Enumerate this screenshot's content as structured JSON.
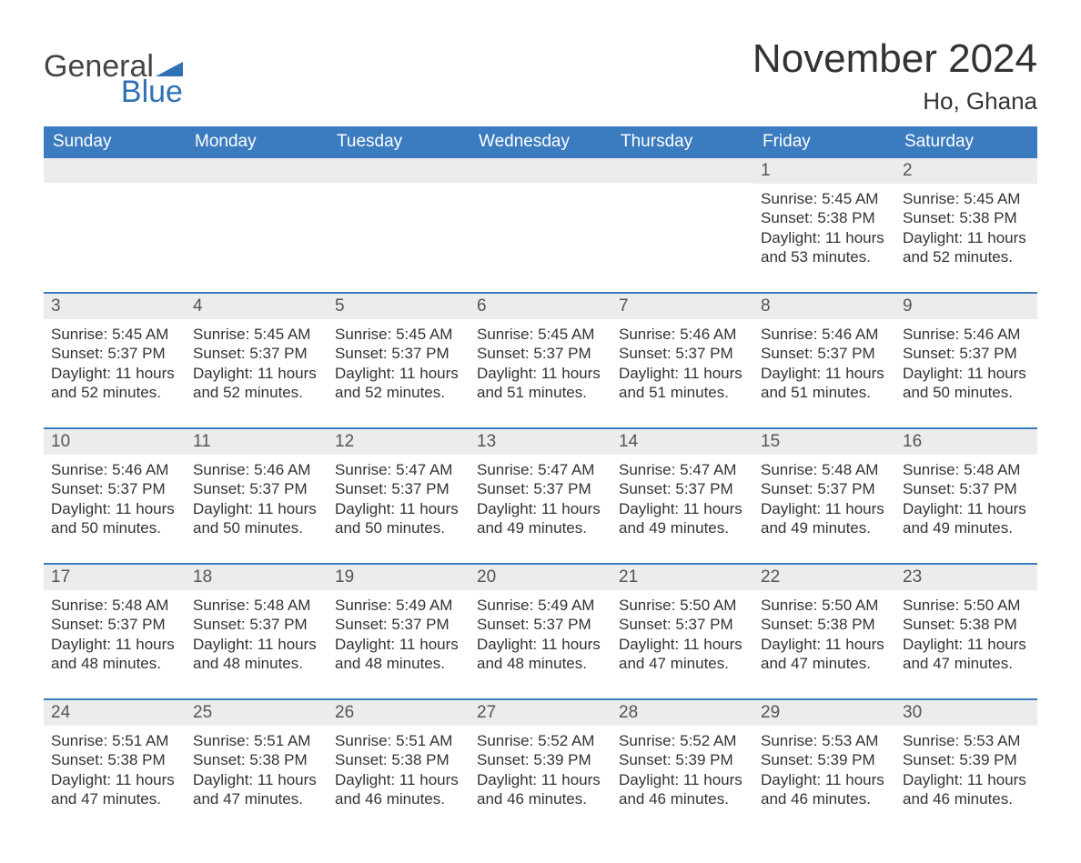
{
  "colors": {
    "header_bg": "#3b7bbf",
    "header_text": "#ffffff",
    "daynum_bg": "#ececec",
    "daynum_text": "#555555",
    "body_text": "#333333",
    "accent": "#2f71b6",
    "row_border": "#3b7bbf",
    "page_bg": "#ffffff"
  },
  "typography": {
    "title_fontsize": 44,
    "location_fontsize": 26,
    "weekday_fontsize": 19,
    "daynum_fontsize": 19,
    "body_fontsize": 17,
    "font_family": "Arial"
  },
  "logo": {
    "line1": "General",
    "line2": "Blue"
  },
  "title": "November 2024",
  "location": "Ho, Ghana",
  "weekdays": [
    "Sunday",
    "Monday",
    "Tuesday",
    "Wednesday",
    "Thursday",
    "Friday",
    "Saturday"
  ],
  "labels": {
    "sunrise": "Sunrise: ",
    "sunset": "Sunset: ",
    "daylight": "Daylight: "
  },
  "weeks": [
    [
      {
        "empty": true
      },
      {
        "empty": true
      },
      {
        "empty": true
      },
      {
        "empty": true
      },
      {
        "empty": true
      },
      {
        "n": "1",
        "sunrise": "5:45 AM",
        "sunset": "5:38 PM",
        "daylight": "11 hours and 53 minutes."
      },
      {
        "n": "2",
        "sunrise": "5:45 AM",
        "sunset": "5:38 PM",
        "daylight": "11 hours and 52 minutes."
      }
    ],
    [
      {
        "n": "3",
        "sunrise": "5:45 AM",
        "sunset": "5:37 PM",
        "daylight": "11 hours and 52 minutes."
      },
      {
        "n": "4",
        "sunrise": "5:45 AM",
        "sunset": "5:37 PM",
        "daylight": "11 hours and 52 minutes."
      },
      {
        "n": "5",
        "sunrise": "5:45 AM",
        "sunset": "5:37 PM",
        "daylight": "11 hours and 52 minutes."
      },
      {
        "n": "6",
        "sunrise": "5:45 AM",
        "sunset": "5:37 PM",
        "daylight": "11 hours and 51 minutes."
      },
      {
        "n": "7",
        "sunrise": "5:46 AM",
        "sunset": "5:37 PM",
        "daylight": "11 hours and 51 minutes."
      },
      {
        "n": "8",
        "sunrise": "5:46 AM",
        "sunset": "5:37 PM",
        "daylight": "11 hours and 51 minutes."
      },
      {
        "n": "9",
        "sunrise": "5:46 AM",
        "sunset": "5:37 PM",
        "daylight": "11 hours and 50 minutes."
      }
    ],
    [
      {
        "n": "10",
        "sunrise": "5:46 AM",
        "sunset": "5:37 PM",
        "daylight": "11 hours and 50 minutes."
      },
      {
        "n": "11",
        "sunrise": "5:46 AM",
        "sunset": "5:37 PM",
        "daylight": "11 hours and 50 minutes."
      },
      {
        "n": "12",
        "sunrise": "5:47 AM",
        "sunset": "5:37 PM",
        "daylight": "11 hours and 50 minutes."
      },
      {
        "n": "13",
        "sunrise": "5:47 AM",
        "sunset": "5:37 PM",
        "daylight": "11 hours and 49 minutes."
      },
      {
        "n": "14",
        "sunrise": "5:47 AM",
        "sunset": "5:37 PM",
        "daylight": "11 hours and 49 minutes."
      },
      {
        "n": "15",
        "sunrise": "5:48 AM",
        "sunset": "5:37 PM",
        "daylight": "11 hours and 49 minutes."
      },
      {
        "n": "16",
        "sunrise": "5:48 AM",
        "sunset": "5:37 PM",
        "daylight": "11 hours and 49 minutes."
      }
    ],
    [
      {
        "n": "17",
        "sunrise": "5:48 AM",
        "sunset": "5:37 PM",
        "daylight": "11 hours and 48 minutes."
      },
      {
        "n": "18",
        "sunrise": "5:48 AM",
        "sunset": "5:37 PM",
        "daylight": "11 hours and 48 minutes."
      },
      {
        "n": "19",
        "sunrise": "5:49 AM",
        "sunset": "5:37 PM",
        "daylight": "11 hours and 48 minutes."
      },
      {
        "n": "20",
        "sunrise": "5:49 AM",
        "sunset": "5:37 PM",
        "daylight": "11 hours and 48 minutes."
      },
      {
        "n": "21",
        "sunrise": "5:50 AM",
        "sunset": "5:37 PM",
        "daylight": "11 hours and 47 minutes."
      },
      {
        "n": "22",
        "sunrise": "5:50 AM",
        "sunset": "5:38 PM",
        "daylight": "11 hours and 47 minutes."
      },
      {
        "n": "23",
        "sunrise": "5:50 AM",
        "sunset": "5:38 PM",
        "daylight": "11 hours and 47 minutes."
      }
    ],
    [
      {
        "n": "24",
        "sunrise": "5:51 AM",
        "sunset": "5:38 PM",
        "daylight": "11 hours and 47 minutes."
      },
      {
        "n": "25",
        "sunrise": "5:51 AM",
        "sunset": "5:38 PM",
        "daylight": "11 hours and 47 minutes."
      },
      {
        "n": "26",
        "sunrise": "5:51 AM",
        "sunset": "5:38 PM",
        "daylight": "11 hours and 46 minutes."
      },
      {
        "n": "27",
        "sunrise": "5:52 AM",
        "sunset": "5:39 PM",
        "daylight": "11 hours and 46 minutes."
      },
      {
        "n": "28",
        "sunrise": "5:52 AM",
        "sunset": "5:39 PM",
        "daylight": "11 hours and 46 minutes."
      },
      {
        "n": "29",
        "sunrise": "5:53 AM",
        "sunset": "5:39 PM",
        "daylight": "11 hours and 46 minutes."
      },
      {
        "n": "30",
        "sunrise": "5:53 AM",
        "sunset": "5:39 PM",
        "daylight": "11 hours and 46 minutes."
      }
    ]
  ]
}
